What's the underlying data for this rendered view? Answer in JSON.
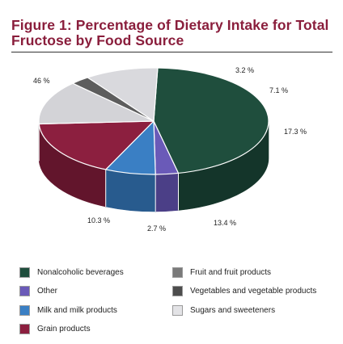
{
  "title_line1": "Figure 1: Percentage of Dietary Intake for Total",
  "title_line2": "Fructose by Food Source",
  "chart_data": {
    "type": "pie",
    "three_d": true,
    "series": [
      {
        "name": "Nonalcoholic beverages",
        "value": 46,
        "label": "46 %",
        "color": "#1f4e3d",
        "side_color": "#14352a"
      },
      {
        "name": "Other",
        "value": 3.2,
        "label": "3.2 %",
        "color": "#6a5ab8",
        "side_color": "#4b3f87"
      },
      {
        "name": "Milk and milk products",
        "value": 7.1,
        "label": "7.1 %",
        "color": "#3a7fc4",
        "side_color": "#285b8e"
      },
      {
        "name": "Grain products",
        "value": 17.3,
        "label": "17.3 %",
        "color": "#8c1f3f",
        "side_color": "#62152c"
      },
      {
        "name": "Vegetables and vegetable products",
        "value": 13.4,
        "label": "13.4 %",
        "color": "#d3d3d7",
        "side_color": "#4b4a50"
      },
      {
        "name": "Fruit and fruit products",
        "value": 2.7,
        "label": "2.7 %",
        "color": "#5d5d5d",
        "side_color": "#404040"
      },
      {
        "name": "Sugars and sweeteners",
        "value": 10.3,
        "label": "10.3 %",
        "color": "#d9d9dd",
        "side_color": "#35333a"
      }
    ]
  },
  "legend": [
    {
      "label": "Nonalcoholic beverages",
      "color": "#1f4e3d"
    },
    {
      "label": "Other",
      "color": "#6a5ab8"
    },
    {
      "label": "Milk and milk products",
      "color": "#3a7fc4"
    },
    {
      "label": "Grain products",
      "color": "#8c1f3f"
    },
    {
      "label": "Fruit and fruit products",
      "color": "#7a7a7a"
    },
    {
      "label": "Vegetables and vegetable products",
      "color": "#4d4d4d"
    },
    {
      "label": "Sugars and sweeteners",
      "color": "#e3e3e6"
    }
  ]
}
